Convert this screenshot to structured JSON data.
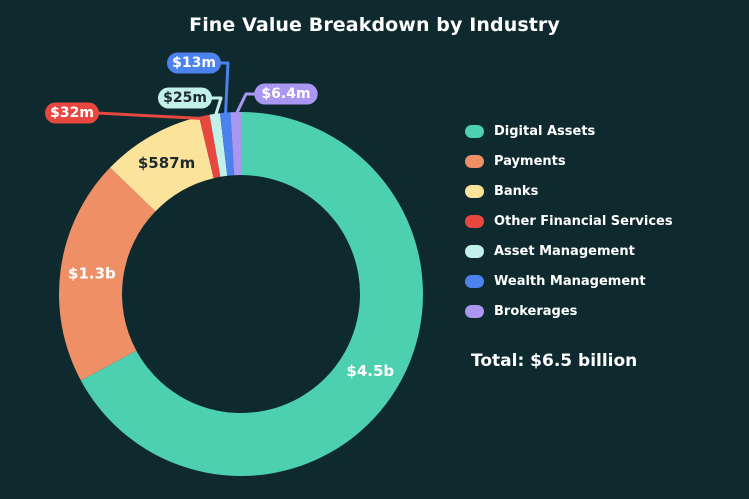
{
  "chart_data": {
    "type": "pie",
    "title": "Fine Value Breakdown by Industry",
    "total_text": "Total: $6.5 billion",
    "legend_position": "right",
    "slices": [
      {
        "name": "Digital Assets",
        "value": 4500,
        "label": "$4.5b",
        "color": "#4dd0b0",
        "text_color": "#ffffff"
      },
      {
        "name": "Payments",
        "value": 1300,
        "label": "$1.3b",
        "color": "#ef8f66",
        "text_color": "#ffffff"
      },
      {
        "name": "Banks",
        "value": 587,
        "label": "$587m",
        "color": "#fbe39b",
        "text_color": "#1f2a2a"
      },
      {
        "name": "Other Financial Services",
        "value": 32,
        "label": "$32m",
        "color": "#e8473f",
        "text_color": "#ffffff"
      },
      {
        "name": "Asset Management",
        "value": 25,
        "label": "$25m",
        "color": "#c2f1ea",
        "text_color": "#1f2a2a"
      },
      {
        "name": "Wealth Management",
        "value": 13,
        "label": "$13m",
        "color": "#4c82ee",
        "text_color": "#ffffff"
      },
      {
        "name": "Brokerages",
        "value": 6.4,
        "label": "$6.4m",
        "color": "#a997f1",
        "text_color": "#ffffff"
      }
    ]
  }
}
